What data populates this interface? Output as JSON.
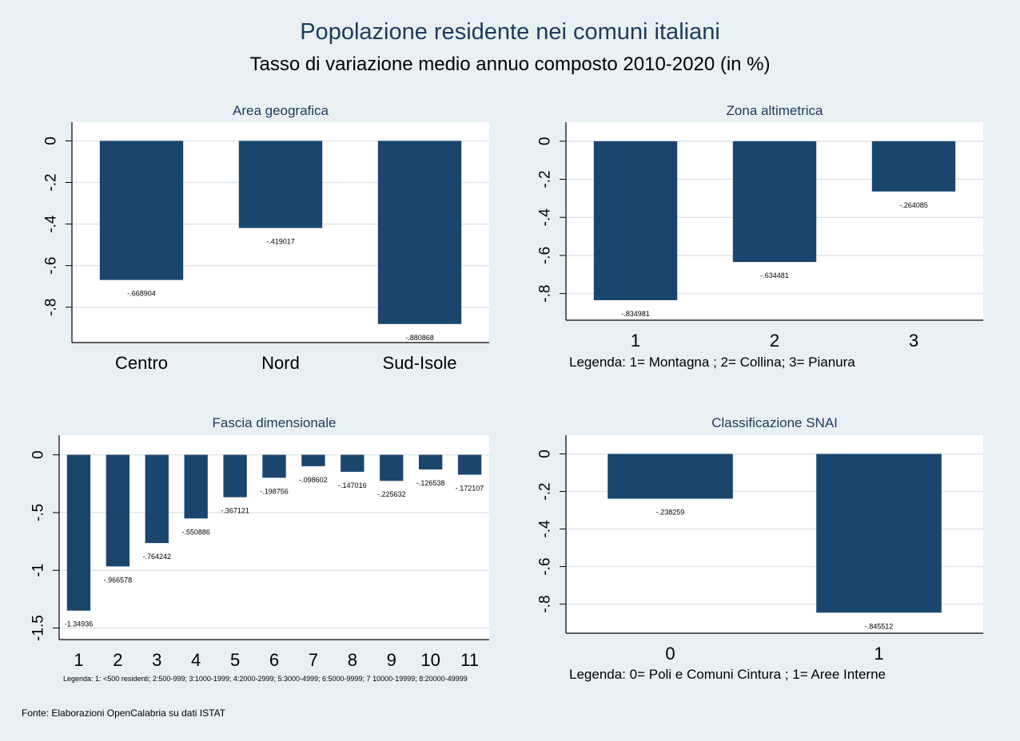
{
  "title": "Popolazione residente nei comuni italiani",
  "subtitle": "Tasso di variazione medio annuo composto 2010-2020 (in %)",
  "footer": "Fonte: Elaborazioni OpenCalabria su dati ISTAT",
  "colors": {
    "bar": "#1a466e",
    "background": "#e9f0f3",
    "plot": "#ffffff",
    "grid": "#dde6ea",
    "title": "#1e3a5f"
  },
  "chart_data": [
    {
      "type": "bar",
      "title": "Area geografica",
      "categories": [
        "Centro",
        "Nord",
        "Sud-Isole"
      ],
      "values": [
        -0.668904,
        -0.419017,
        -0.880868
      ],
      "value_labels": [
        "-.668904",
        "-.419017",
        "-.880868"
      ],
      "yticks": [
        0,
        -0.2,
        -0.4,
        -0.6,
        -0.8
      ],
      "ytick_labels": [
        "0",
        "-.2",
        "-.4",
        "-.6",
        "-.8"
      ],
      "ylim": [
        -0.97,
        0.09
      ],
      "grid": true,
      "legend_text": ""
    },
    {
      "type": "bar",
      "title": "Zona altimetrica",
      "categories": [
        "1",
        "2",
        "3"
      ],
      "values": [
        -0.834981,
        -0.634481,
        -0.264085
      ],
      "value_labels": [
        "-.834981",
        "-.634481",
        "-.264085"
      ],
      "yticks": [
        0,
        -0.2,
        -0.4,
        -0.6,
        -0.8
      ],
      "ytick_labels": [
        "0",
        "-.2",
        "-.4",
        "-.6",
        "-.8"
      ],
      "ylim": [
        -0.94,
        0.1
      ],
      "grid": true,
      "legend_text": "Legenda:  1= Montagna ; 2= Collina; 3= Pianura"
    },
    {
      "type": "bar",
      "title": "Fascia dimensionale",
      "categories": [
        "1",
        "2",
        "3",
        "4",
        "5",
        "6",
        "7",
        "8",
        "9",
        "10",
        "11"
      ],
      "values": [
        -1.34936,
        -0.966578,
        -0.764242,
        -0.550886,
        -0.367121,
        -0.198756,
        -0.098602,
        -0.147016,
        -0.225632,
        -0.126538,
        -0.172107
      ],
      "value_labels": [
        "-1.34936",
        "-.966578",
        "-.764242",
        "-.550886",
        "-.367121",
        "-.198756",
        "-.098602",
        "-.147016",
        "-.225632",
        "-.126538",
        "-.172107"
      ],
      "yticks": [
        0,
        -0.5,
        -1,
        -1.5
      ],
      "ytick_labels": [
        "0",
        "-.5",
        "-1",
        "-1.5"
      ],
      "ylim": [
        -1.6,
        0.17
      ],
      "grid": true,
      "legend_text": "Legenda: 1: <500 residenti; 2:500-999; 3:1000-1999; 4:2000-2999; 5:3000-4999; 6:5000-9999; 7 10000-19999; 8:20000-49999"
    },
    {
      "type": "bar",
      "title": "Classificazione SNAI",
      "categories": [
        "0",
        "1"
      ],
      "values": [
        -0.238259,
        -0.845512
      ],
      "value_labels": [
        "-.238259",
        "-.845512"
      ],
      "yticks": [
        0,
        -0.2,
        -0.4,
        -0.6,
        -0.8
      ],
      "ytick_labels": [
        "0",
        "-.2",
        "-.4",
        "-.6",
        "-.8"
      ],
      "ylim": [
        -0.955,
        0.1
      ],
      "grid": true,
      "legend_text": "Legenda:  0= Poli e Comuni Cintura ; 1= Aree Interne"
    }
  ]
}
